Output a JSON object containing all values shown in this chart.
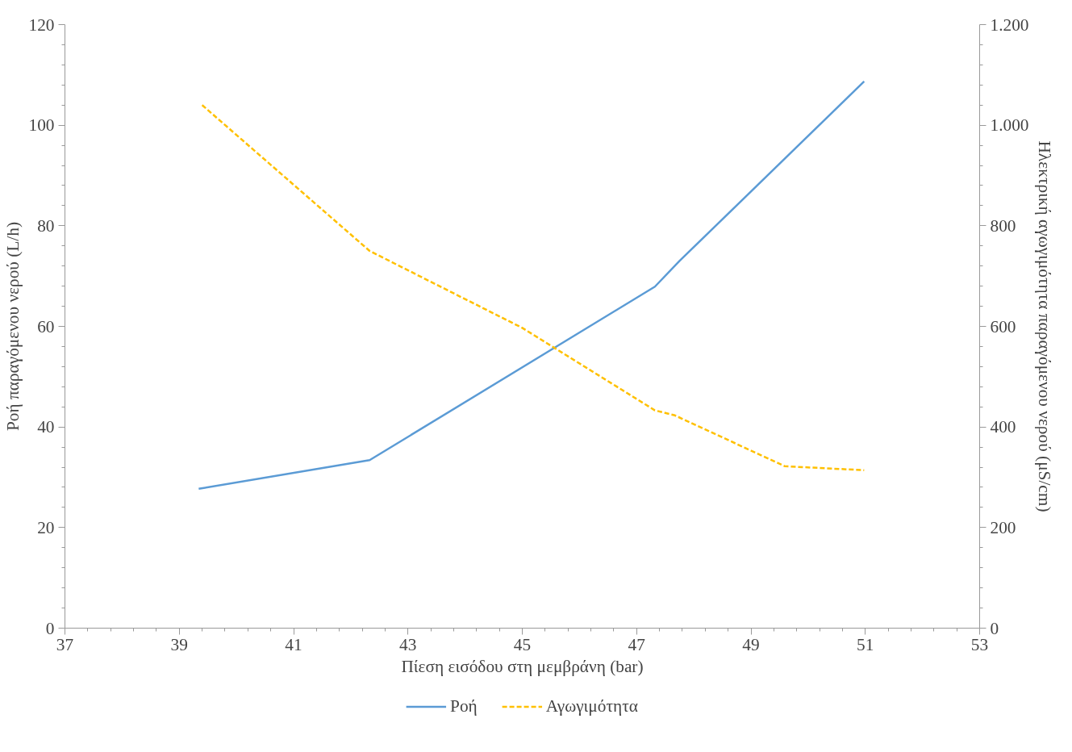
{
  "chart_data": {
    "type": "line",
    "xlabel": "Πίεση εισόδου στη μεμβράνη (bar)",
    "ylabel": "Ροή παραγόμενου νερού (L/h)",
    "y2label": "Ηλεκτρική αγωγιμότητα παραγόμενου νερού (μS/cm)",
    "xlim": [
      37,
      53
    ],
    "xticks": [
      37,
      39,
      41,
      43,
      45,
      47,
      49,
      51,
      53
    ],
    "ylim": [
      0,
      120
    ],
    "yticks": [
      0,
      20,
      40,
      60,
      80,
      100,
      120
    ],
    "y2lim": [
      0,
      1200
    ],
    "y2ticks": [
      0,
      200,
      400,
      600,
      800,
      {
        "value": 1000,
        "label": "1.000"
      },
      {
        "value": 1200,
        "label": "1.200"
      }
    ],
    "grid": false,
    "legend": "bottom",
    "marker": "none",
    "series": [
      {
        "name": "Ροή",
        "color": "#5b9bd5",
        "line_style": "solid",
        "x": [
          39.34,
          42.33,
          47.32,
          47.75,
          50.98
        ],
        "values": [
          27.7,
          33.4,
          67.9,
          73.0,
          108.7
        ]
      },
      {
        "name": "Αγωγιμότητα",
        "color": "#ffc000",
        "line_style": "dashed",
        "axis": "y2",
        "x": [
          39.4,
          42.33,
          45.0,
          47.32,
          47.67,
          49.59,
          50.98
        ],
        "values": [
          1040,
          750,
          597,
          433,
          423,
          322,
          314
        ]
      }
    ]
  }
}
